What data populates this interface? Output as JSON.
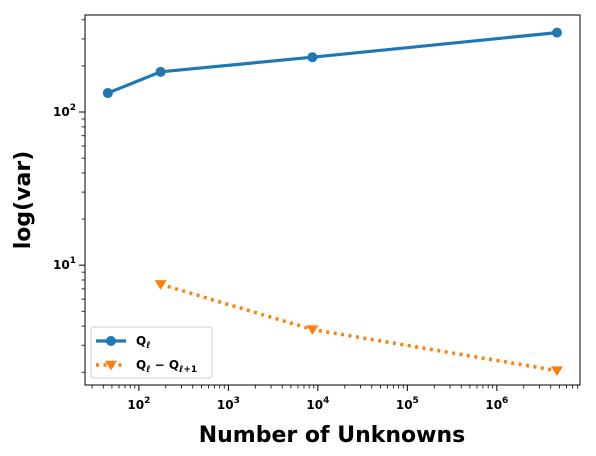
{
  "chart_data": {
    "type": "line",
    "xlabel": "Number of Unknowns",
    "ylabel": "log(var)",
    "x_scale": "log",
    "y_scale": "log",
    "xlim": [
      25,
      8500000
    ],
    "ylim": [
      1.65,
      430
    ],
    "x_ticks": [
      {
        "value": 100,
        "base": "10",
        "exp": "2"
      },
      {
        "value": 1000,
        "base": "10",
        "exp": "3"
      },
      {
        "value": 10000,
        "base": "10",
        "exp": "4"
      },
      {
        "value": 100000,
        "base": "10",
        "exp": "5"
      },
      {
        "value": 1000000,
        "base": "10",
        "exp": "6"
      }
    ],
    "y_ticks": [
      {
        "value": 10,
        "base": "10",
        "exp": "1"
      },
      {
        "value": 100,
        "base": "10",
        "exp": "2"
      }
    ],
    "grid": false,
    "legend_position": "lower-left",
    "series": [
      {
        "name_main": "Q",
        "name_sub": "ℓ",
        "name_tail": "",
        "name_sub2": "",
        "color": "#1f77b4",
        "style": "solid",
        "marker": "circle",
        "x": [
          45,
          175,
          8700,
          4700000
        ],
        "y": [
          133,
          183,
          228,
          330
        ]
      },
      {
        "name_main": "Q",
        "name_sub": "ℓ",
        "name_tail": " − Q",
        "name_sub2": "ℓ+1",
        "color": "#ff7f0e",
        "style": "dotted",
        "marker": "triangle-down",
        "x": [
          175,
          8700,
          4700000
        ],
        "y": [
          7.5,
          3.8,
          2.05
        ]
      }
    ]
  }
}
